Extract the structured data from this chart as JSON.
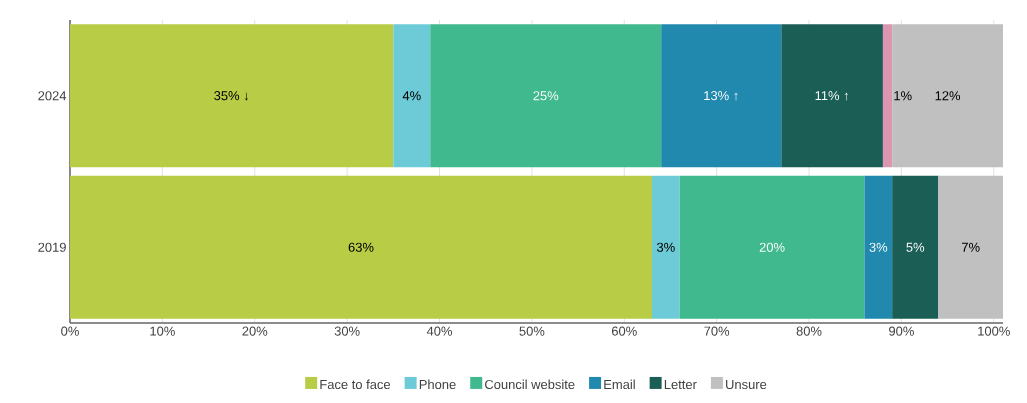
{
  "chart_data": {
    "type": "bar",
    "orientation": "horizontal",
    "stacked": true,
    "categories": [
      "2024",
      "2019"
    ],
    "series": [
      {
        "name": "Face to face",
        "color": "#b8cc45",
        "values": [
          35,
          63
        ],
        "value_labels": [
          "35% ↓",
          "63%"
        ]
      },
      {
        "name": "Phone",
        "color": "#6ccbd6",
        "values": [
          4,
          3
        ],
        "value_labels": [
          "4%",
          "3%"
        ]
      },
      {
        "name": "Council website",
        "color": "#40b98e",
        "values": [
          25,
          20
        ],
        "value_labels": [
          "25%",
          "20%"
        ]
      },
      {
        "name": "Email",
        "color": "#2289ae",
        "values": [
          13,
          3
        ],
        "value_labels": [
          "13% ↑",
          "3%"
        ]
      },
      {
        "name": "Letter",
        "color": "#1b5e55",
        "values": [
          11,
          5
        ],
        "value_labels": [
          "11% ↑",
          "5%"
        ]
      },
      {
        "color": "#dd96b0",
        "values": [
          1,
          null
        ],
        "value_labels": [
          "1%",
          null
        ]
      },
      {
        "name": "Unsure",
        "color": "#c0c0c0",
        "values": [
          12,
          7
        ],
        "value_labels": [
          "12%",
          "7%"
        ]
      }
    ],
    "xlim": [
      0,
      101
    ],
    "xticks": [
      {
        "value": 0,
        "label": "0%"
      },
      {
        "value": 10,
        "label": "10%"
      },
      {
        "value": 20,
        "label": "20%"
      },
      {
        "value": 30,
        "label": "30%"
      },
      {
        "value": 40,
        "label": "40%"
      },
      {
        "value": 50,
        "label": "50%"
      },
      {
        "value": 60,
        "label": "60%"
      },
      {
        "value": 70,
        "label": "70%"
      },
      {
        "value": 80,
        "label": "80%"
      },
      {
        "value": 90,
        "label": "90%"
      },
      {
        "value": 100,
        "label": "100%"
      }
    ],
    "grid": "x",
    "legend": "bottom"
  }
}
